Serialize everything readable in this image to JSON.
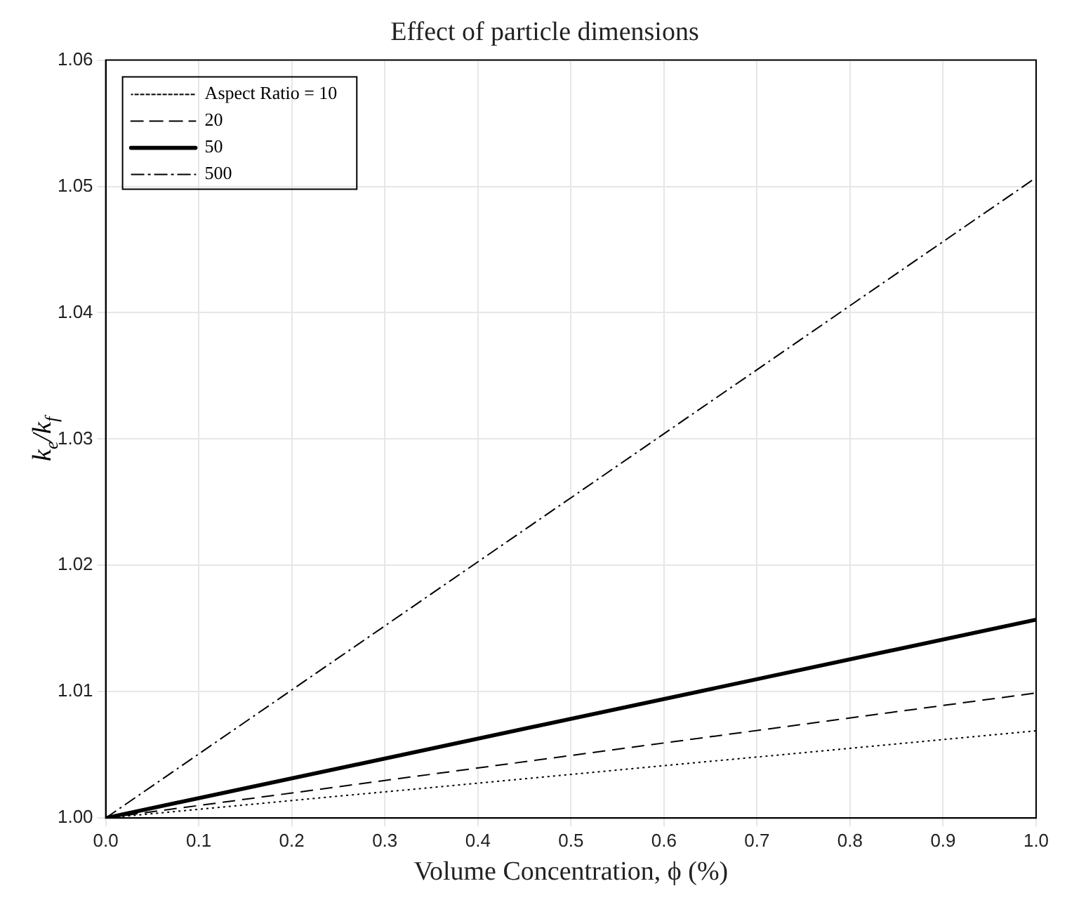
{
  "chart_data": {
    "type": "line",
    "title": "Effect of particle dimensions",
    "xlabel": "Volume Concentration, ϕ (%)",
    "ylabel": "k$_{e}$/k$_{f}$",
    "x": [
      0,
      1
    ],
    "series": [
      {
        "name": "Aspect Ratio = 10",
        "color": "#000000",
        "values": [
          1,
          1.0069
        ],
        "line_style": "dotted"
      },
      {
        "name": "20",
        "color": "#000000",
        "values": [
          1,
          1.0099
        ],
        "line_style": "dashed"
      },
      {
        "name": "50",
        "color": "#000000",
        "values": [
          1,
          1.0157
        ],
        "line_style": "solid"
      },
      {
        "name": "500",
        "color": "#000000",
        "values": [
          1,
          1.0507
        ],
        "line_style": "dashdot"
      }
    ],
    "xlim": [
      0,
      1
    ],
    "xticks": [
      {
        "value": 0,
        "label": "0.0"
      },
      0.1,
      0.2,
      0.3,
      0.4,
      0.5,
      0.6,
      0.7,
      0.8,
      0.9,
      {
        "value": 1,
        "label": "1.0"
      }
    ],
    "ylim": [
      1,
      1.06
    ],
    "yticks": [
      {
        "value": 1,
        "label": "1.00"
      },
      1.01,
      1.02,
      1.03,
      1.04,
      1.05,
      1.06
    ],
    "grid": true,
    "legend": "top left",
    "marker": "none"
  }
}
